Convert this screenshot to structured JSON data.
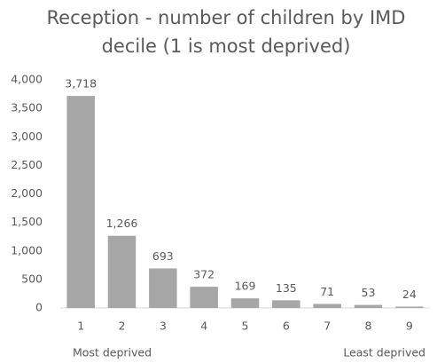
{
  "chart_data": {
    "type": "bar",
    "title": "Reception - number of children by IMD decile (1 is most deprived)",
    "categories": [
      "1",
      "2",
      "3",
      "4",
      "5",
      "6",
      "7",
      "8",
      "9"
    ],
    "values": [
      3718,
      1266,
      693,
      372,
      169,
      135,
      71,
      53,
      24
    ],
    "value_labels": [
      "3,718",
      "1,266",
      "693",
      "372",
      "169",
      "135",
      "71",
      "53",
      "24"
    ],
    "color": "#a6a6a6",
    "ylim": [
      0,
      4000
    ],
    "yticks": [
      0,
      500,
      {
        "value": 1000,
        "label": "1,000"
      },
      {
        "value": 1500,
        "label": "1,500"
      },
      {
        "value": 2000,
        "label": "2,000"
      },
      {
        "value": 2500,
        "label": "2,500"
      },
      {
        "value": 3000,
        "label": "3,000"
      },
      {
        "value": 3500,
        "label": "3,500"
      },
      {
        "value": 4000,
        "label": "4,000"
      }
    ],
    "grid": false,
    "annotations": [
      "Most deprived",
      "Least deprived"
    ]
  }
}
